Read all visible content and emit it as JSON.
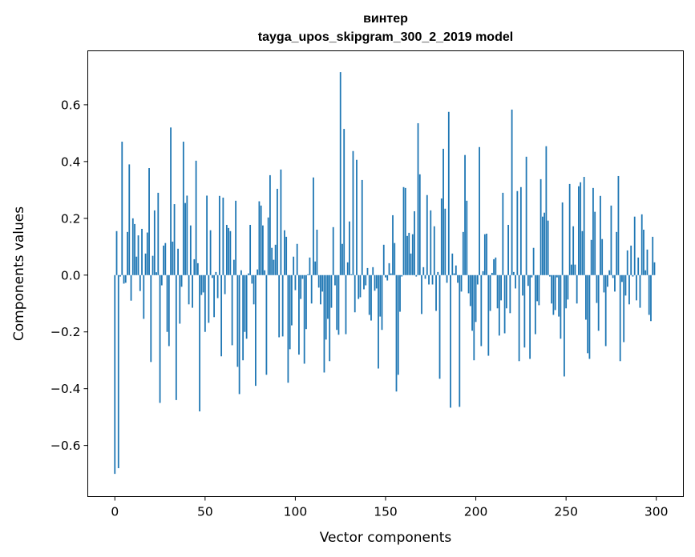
{
  "chart_data": {
    "type": "bar",
    "title": "винтер",
    "subtitle": "tayga_upos_skipgram_300_2_2019 model",
    "xlabel": "Vector components",
    "ylabel": "Components values",
    "xlim": [
      -15,
      315
    ],
    "ylim": [
      -0.78,
      0.79
    ],
    "xticks": [
      0,
      50,
      100,
      150,
      200,
      250,
      300
    ],
    "xtick_labels": [
      "0",
      "50",
      "100",
      "150",
      "200",
      "250",
      "300"
    ],
    "yticks": [
      -0.6,
      -0.4,
      -0.2,
      0.0,
      0.2,
      0.4,
      0.6
    ],
    "ytick_labels": [
      "−0.6",
      "−0.4",
      "−0.2",
      "0.0",
      "0.2",
      "0.4",
      "0.6"
    ],
    "grid": false,
    "bar_color": "#1f77b4",
    "values": [
      -0.7,
      0.155,
      -0.68,
      -0.005,
      0.47,
      -0.03,
      -0.027,
      0.152,
      0.39,
      -0.09,
      0.2,
      0.18,
      0.065,
      0.14,
      -0.056,
      0.163,
      -0.154,
      0.076,
      0.15,
      0.377,
      -0.306,
      0.068,
      0.228,
      0.01,
      0.29,
      -0.45,
      -0.036,
      0.104,
      0.113,
      -0.2,
      -0.25,
      0.52,
      0.118,
      0.25,
      -0.44,
      0.093,
      -0.171,
      -0.041,
      0.47,
      0.254,
      0.28,
      -0.103,
      0.175,
      -0.115,
      0.056,
      0.403,
      0.042,
      -0.48,
      -0.07,
      -0.061,
      -0.2,
      0.28,
      -0.168,
      0.158,
      -0.01,
      -0.148,
      0.011,
      -0.081,
      0.279,
      -0.286,
      0.273,
      -0.067,
      0.177,
      0.166,
      0.155,
      -0.247,
      0.054,
      0.262,
      -0.323,
      -0.419,
      0.017,
      -0.3,
      -0.2,
      -0.224,
      0.006,
      0.177,
      -0.03,
      -0.103,
      -0.39,
      0.02,
      0.26,
      0.245,
      0.175,
      0.017,
      -0.351,
      0.203,
      0.352,
      0.096,
      0.054,
      0.107,
      0.304,
      -0.219,
      0.372,
      -0.216,
      0.158,
      0.135,
      -0.379,
      -0.261,
      -0.177,
      0.065,
      -0.053,
      0.11,
      -0.28,
      -0.084,
      -0.013,
      -0.312,
      -0.19,
      0.003,
      0.062,
      -0.1,
      0.344,
      0.048,
      0.16,
      -0.044,
      -0.103,
      -0.058,
      -0.343,
      -0.227,
      -0.154,
      -0.303,
      -0.115,
      0.169,
      -0.036,
      -0.193,
      -0.21,
      0.715,
      0.11,
      0.515,
      -0.208,
      0.045,
      0.189,
      0.003,
      0.437,
      -0.131,
      0.406,
      -0.084,
      -0.078,
      0.335,
      -0.05,
      -0.036,
      0.025,
      -0.14,
      -0.16,
      0.028,
      -0.055,
      -0.047,
      -0.329,
      -0.146,
      -0.193,
      0.107,
      -0.008,
      -0.019,
      0.042,
      0.006,
      0.211,
      0.113,
      -0.41,
      -0.351,
      -0.129,
      -0.005,
      0.31,
      0.307,
      0.138,
      0.149,
      0.076,
      0.144,
      0.225,
      -0.005,
      0.535,
      0.355,
      -0.137,
      0.028,
      -0.013,
      0.282,
      -0.033,
      0.228,
      -0.033,
      0.172,
      -0.126,
      0.011,
      -0.365,
      0.27,
      0.445,
      0.234,
      -0.027,
      0.575,
      -0.467,
      0.076,
      0.006,
      0.034,
      -0.027,
      -0.464,
      -0.058,
      0.152,
      0.423,
      0.262,
      -0.064,
      -0.109,
      -0.196,
      -0.3,
      -0.165,
      -0.033,
      0.451,
      -0.25,
      0.014,
      0.144,
      0.146,
      -0.284,
      -0.126,
      0.008,
      0.056,
      0.062,
      -0.117,
      -0.213,
      -0.089,
      0.29,
      -0.205,
      -0.117,
      0.177,
      -0.134,
      0.583,
      0.011,
      -0.047,
      0.296,
      -0.303,
      0.31,
      -0.072,
      -0.255,
      0.417,
      -0.038,
      -0.295,
      -0.008,
      0.096,
      -0.208,
      -0.092,
      -0.106,
      0.338,
      0.206,
      0.22,
      0.454,
      0.192,
      -0.005,
      -0.1,
      -0.14,
      -0.123,
      -0.008,
      -0.146,
      -0.224,
      0.256,
      -0.357,
      -0.117,
      -0.086,
      0.321,
      0.037,
      0.172,
      0.037,
      -0.1,
      0.313,
      0.327,
      0.155,
      0.346,
      -0.157,
      -0.275,
      -0.295,
      0.124,
      0.307,
      0.223,
      -0.098,
      -0.196,
      0.279,
      0.127,
      -0.061,
      -0.25,
      -0.041,
      0.017,
      0.245,
      -0.01,
      -0.058,
      0.152,
      0.349,
      -0.303,
      -0.024,
      -0.236,
      -0.072,
      0.087,
      -0.103,
      0.104,
      -0.005,
      0.206,
      -0.089,
      0.062,
      -0.115,
      0.214,
      0.16,
      0.017,
      0.09,
      -0.14,
      -0.162,
      0.135,
      0.045
    ]
  }
}
